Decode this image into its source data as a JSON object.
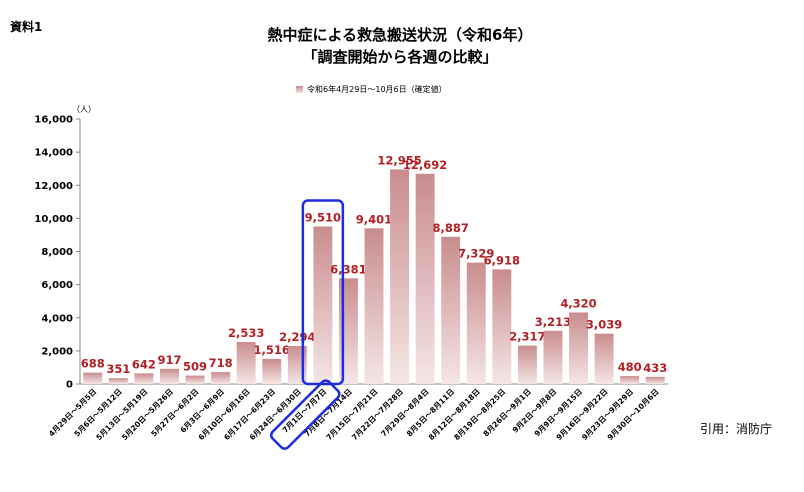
{
  "reference_label": "資料1",
  "source_text": "引用：消防庁",
  "chart_data": {
    "type": "bar",
    "title": "熱中症による救急搬送状況（令和6年）",
    "subtitle": "「調査開始から各週の比較」",
    "ylabel": "（人）",
    "xlabel": "",
    "ylim": [
      0,
      16000
    ],
    "yticks": [
      "0",
      "2,000",
      "4,000",
      "6,000",
      "8,000",
      "10,000",
      "12,000",
      "14,000",
      "16,000"
    ],
    "grid": false,
    "legend_position": "top-center",
    "categories": [
      "4月29日～5月5日",
      "5月6日～5月12日",
      "5月13日～5月19日",
      "5月20日～5月26日",
      "5月27日～6月2日",
      "6月3日～6月9日",
      "6月10日～6月16日",
      "6月17日～6月23日",
      "6月24日～6月30日",
      "7月1日～7月7日",
      "7月8日～7月14日",
      "7月15日～7月21日",
      "7月22日～7月28日",
      "7月29日～8月4日",
      "8月5日～8月11日",
      "8月12日～8月18日",
      "8月19日～8月25日",
      "8月26日～9月1日",
      "9月2日～9月8日",
      "9月9日～9月15日",
      "9月16日～9月22日",
      "9月23日～9月29日",
      "9月30日～10月6日"
    ],
    "series": [
      {
        "name": "令和6年4月29日～10月6日（確定値）",
        "values": [
          688,
          351,
          642,
          917,
          509,
          718,
          2533,
          1516,
          2294,
          9510,
          6381,
          9401,
          12955,
          12692,
          8887,
          7329,
          6918,
          2317,
          3213,
          4320,
          3039,
          480,
          433
        ],
        "labels": [
          "688",
          "351",
          "642",
          "917",
          "509",
          "718",
          "2,533",
          "1,516",
          "2,294",
          "9,510",
          "6,381",
          "9,401",
          "12,955",
          "12,692",
          "8,887",
          "7,329",
          "6,918",
          "2,317",
          "3,213",
          "4,320",
          "3,039",
          "480",
          "433"
        ]
      }
    ],
    "highlight_category": "7月1日～7月7日",
    "colors": {
      "bar_top": "#c98c8e",
      "bar_bottom": "#f5e6e6",
      "data_label": "#b32024",
      "highlight": "#1c2de0"
    }
  }
}
